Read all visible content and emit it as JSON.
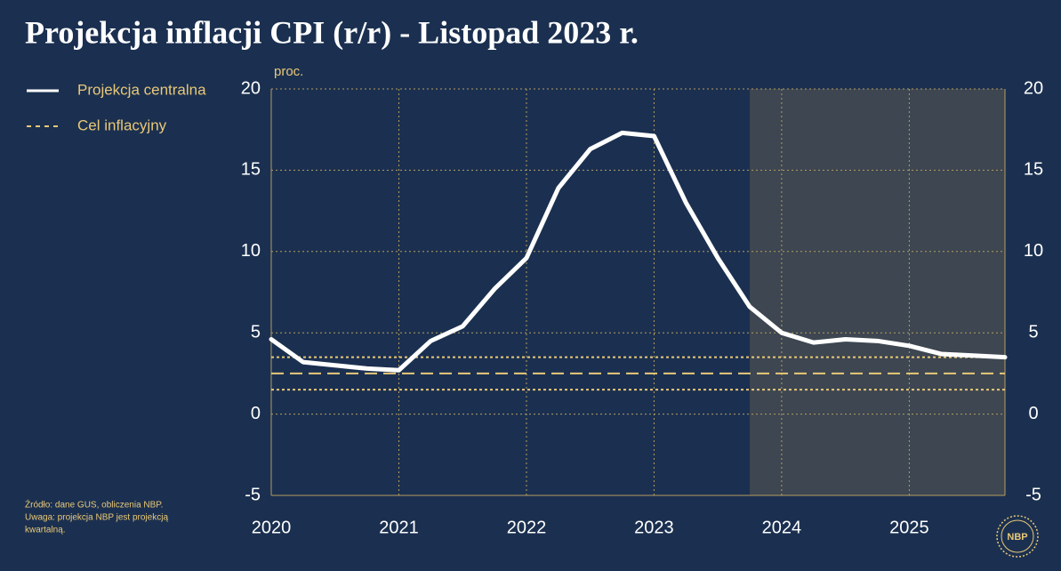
{
  "chart_data": {
    "type": "line",
    "title": "Projekcja inflacji CPI (r/r) - Listopad 2023 r.",
    "y_unit": "proc.",
    "x": [
      2020,
      2020.25,
      2020.5,
      2020.75,
      2021,
      2021.25,
      2021.5,
      2021.75,
      2022,
      2022.25,
      2022.5,
      2022.75,
      2023,
      2023.25,
      2023.5,
      2023.75,
      2024,
      2024.25,
      2024.5,
      2024.75,
      2025,
      2025.25,
      2025.5,
      2025.75
    ],
    "series": [
      {
        "name": "Projekcja centralna",
        "color": "#ffffff",
        "values": [
          4.6,
          3.2,
          3.0,
          2.8,
          2.7,
          4.5,
          5.4,
          7.7,
          9.6,
          13.9,
          16.3,
          17.3,
          17.1,
          13.0,
          9.6,
          6.6,
          5.0,
          4.4,
          4.6,
          4.5,
          4.2,
          3.7,
          3.6,
          3.5
        ]
      }
    ],
    "target": {
      "name": "Cel inflacyjny",
      "color": "#e9c878",
      "value": 2.5,
      "band": [
        1.5,
        3.5
      ]
    },
    "projection_start": 2023.75,
    "xlim": [
      2020,
      2025.75
    ],
    "xticks": [
      2020,
      2021,
      2022,
      2023,
      2024,
      2025
    ],
    "ylim": [
      -5,
      20
    ],
    "yticks": [
      -5,
      0,
      5,
      10,
      15,
      20
    ],
    "grid": true,
    "grid_color": "#b59d5e",
    "notes": [
      "Źródło: dane GUS, obliczenia NBP.",
      "Uwaga: projekcja NBP jest projekcją",
      "kwartalną."
    ],
    "logo": "NBP"
  }
}
